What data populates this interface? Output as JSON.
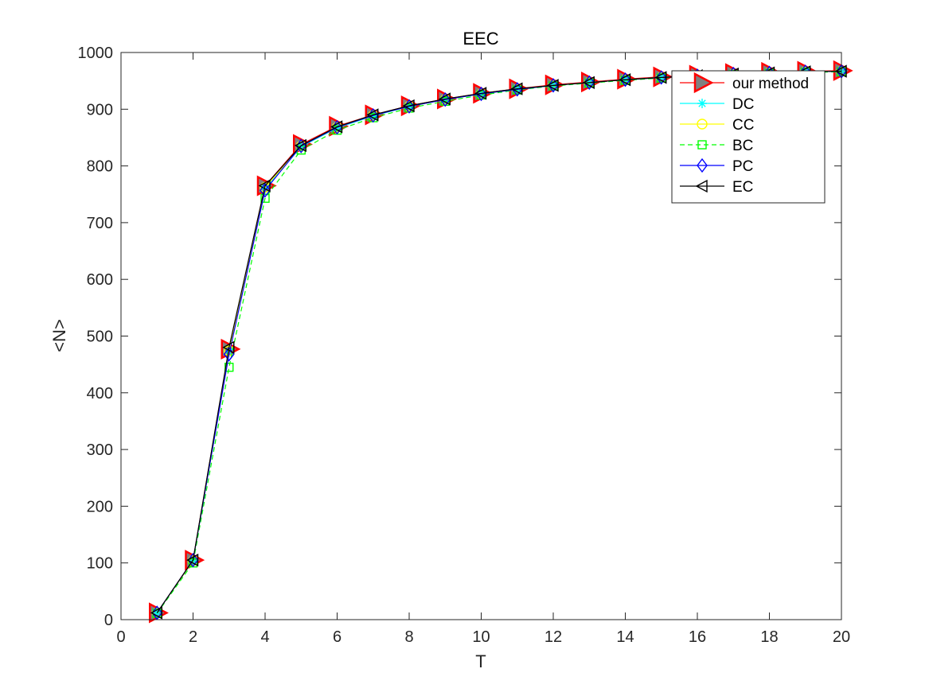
{
  "chart_data": {
    "type": "line",
    "title": "EEC",
    "xlabel": "T",
    "ylabel": "<N>",
    "xlim": [
      0,
      20
    ],
    "ylim": [
      0,
      1000
    ],
    "xticks": [
      "0",
      "2",
      "4",
      "6",
      "8",
      "10",
      "12",
      "14",
      "16",
      "18",
      "20"
    ],
    "yticks": [
      "0",
      "100",
      "200",
      "300",
      "400",
      "500",
      "600",
      "700",
      "800",
      "900",
      "1000"
    ],
    "grid": false,
    "legend_position": "top-right",
    "x": [
      1,
      2,
      3,
      4,
      5,
      6,
      7,
      8,
      9,
      10,
      11,
      12,
      13,
      14,
      15,
      16,
      17,
      18,
      19,
      20
    ],
    "series": [
      {
        "name": "our method",
        "color": "#ff0000",
        "marker": "triangle-right",
        "marker_fill": "#808080",
        "line_style": "solid",
        "values": [
          12,
          105,
          477,
          765,
          838,
          870,
          890,
          906,
          918,
          928,
          936,
          943,
          948,
          953,
          957,
          960,
          963,
          965,
          967,
          968
        ]
      },
      {
        "name": "DC",
        "color": "#00ffff",
        "marker": "asterisk",
        "line_style": "solid",
        "values": [
          12,
          104,
          472,
          760,
          834,
          867,
          888,
          905,
          917,
          927,
          935,
          942,
          947,
          952,
          956,
          959,
          962,
          964,
          966,
          967
        ]
      },
      {
        "name": "CC",
        "color": "#ffff00",
        "marker": "circle",
        "line_style": "solid",
        "values": [
          12,
          104,
          474,
          762,
          835,
          868,
          889,
          905,
          917,
          927,
          935,
          942,
          947,
          952,
          956,
          959,
          962,
          964,
          966,
          967
        ]
      },
      {
        "name": "BC",
        "color": "#00ff00",
        "marker": "square",
        "line_style": "dashed",
        "values": [
          11,
          100,
          445,
          743,
          828,
          863,
          885,
          902,
          914,
          925,
          934,
          941,
          946,
          951,
          955,
          958,
          961,
          963,
          965,
          966
        ]
      },
      {
        "name": "PC",
        "color": "#0000ff",
        "marker": "diamond",
        "line_style": "solid",
        "values": [
          12,
          105,
          468,
          757,
          835,
          868,
          889,
          905,
          917,
          927,
          935,
          942,
          947,
          952,
          956,
          959,
          962,
          964,
          966,
          967
        ]
      },
      {
        "name": "EC",
        "color": "#000000",
        "marker": "triangle-left",
        "line_style": "solid",
        "values": [
          12,
          105,
          480,
          765,
          836,
          869,
          890,
          906,
          918,
          928,
          936,
          942,
          947,
          952,
          956,
          959,
          962,
          964,
          966,
          967
        ]
      }
    ]
  }
}
